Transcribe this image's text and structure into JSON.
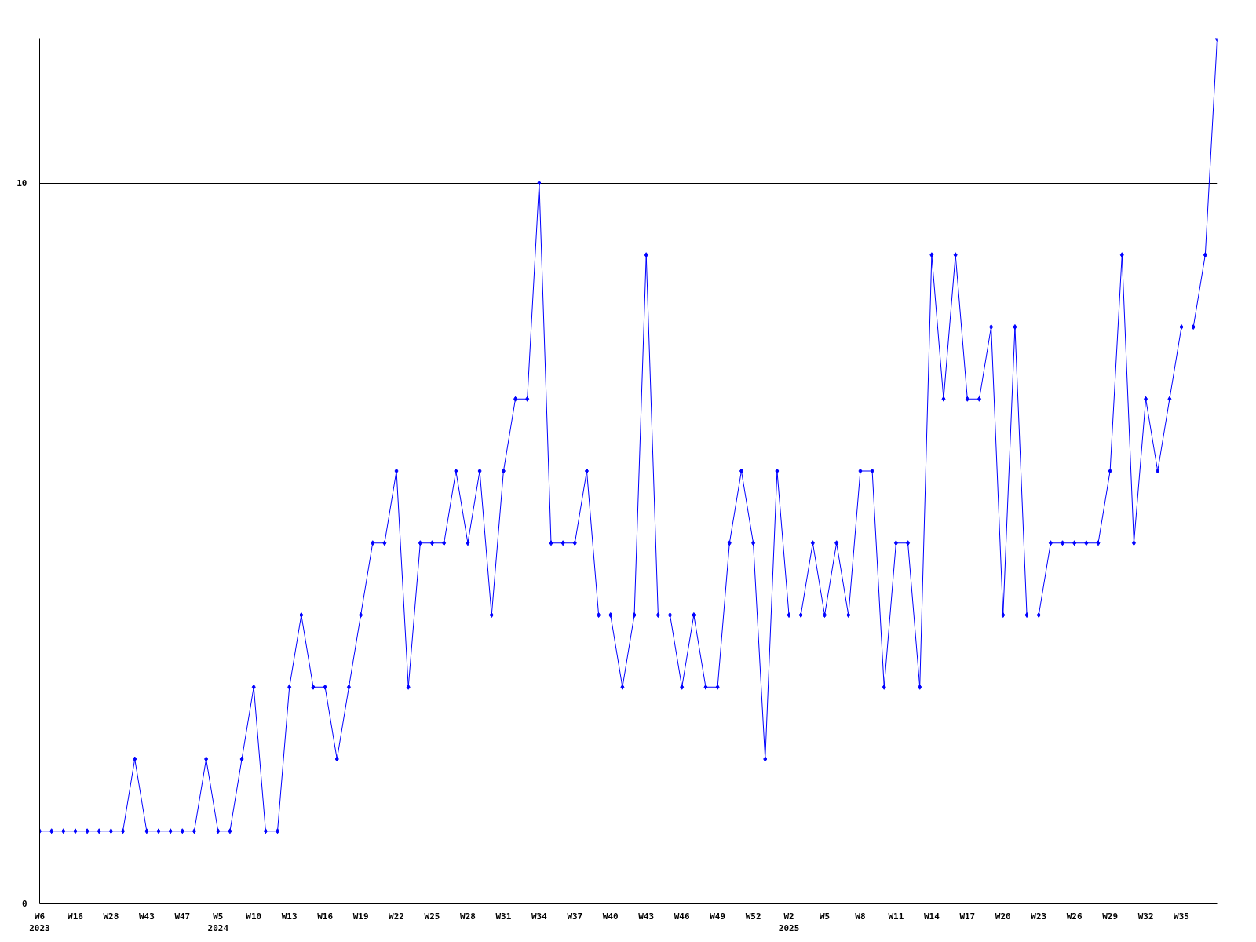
{
  "chart_data": {
    "type": "line",
    "categories": [
      "W6\n2023",
      null,
      null,
      "W16",
      null,
      null,
      "W28",
      null,
      null,
      "W43",
      null,
      null,
      "W47",
      null,
      null,
      "W5\n2024",
      null,
      null,
      "W10",
      null,
      null,
      "W13",
      null,
      null,
      "W16",
      null,
      null,
      "W19",
      null,
      null,
      "W22",
      null,
      null,
      "W25",
      null,
      null,
      "W28",
      null,
      null,
      "W31",
      null,
      null,
      "W34",
      null,
      null,
      "W37",
      null,
      null,
      "W40",
      null,
      null,
      "W43",
      null,
      null,
      "W46",
      null,
      null,
      "W49",
      null,
      null,
      "W52",
      null,
      null,
      "W2\n2025",
      null,
      null,
      "W5",
      null,
      null,
      "W8",
      null,
      null,
      "W11",
      null,
      null,
      "W14",
      null,
      null,
      "W17",
      null,
      null,
      "W20",
      null,
      null,
      "W23",
      null,
      null,
      "W26",
      null,
      null,
      "W29",
      null,
      null,
      "W32",
      null,
      null,
      "W35",
      null,
      null,
      null
    ],
    "series": [
      {
        "color": "#0000ff",
        "values": [
          1,
          1,
          1,
          1,
          1,
          1,
          1,
          1,
          2,
          1,
          1,
          1,
          1,
          1,
          2,
          1,
          1,
          2,
          3,
          1,
          1,
          3,
          4,
          3,
          3,
          2,
          3,
          4,
          5,
          5,
          6,
          3,
          5,
          5,
          5,
          6,
          5,
          6,
          4,
          6,
          7,
          7,
          10,
          5,
          5,
          5,
          6,
          4,
          4,
          3,
          4,
          9,
          4,
          4,
          3,
          4,
          3,
          3,
          5,
          6,
          5,
          2,
          6,
          4,
          4,
          5,
          4,
          5,
          4,
          6,
          6,
          3,
          5,
          5,
          3,
          9,
          7,
          9,
          7,
          7,
          8,
          4,
          8,
          4,
          4,
          5,
          5,
          5,
          5,
          5,
          6,
          9,
          5,
          7,
          6,
          7,
          8,
          8,
          9,
          12
        ]
      }
    ],
    "ylim": [
      0,
      12
    ],
    "yticks": [
      0,
      10
    ],
    "grid": "y",
    "marker": "diamond",
    "line_style": "solid"
  }
}
